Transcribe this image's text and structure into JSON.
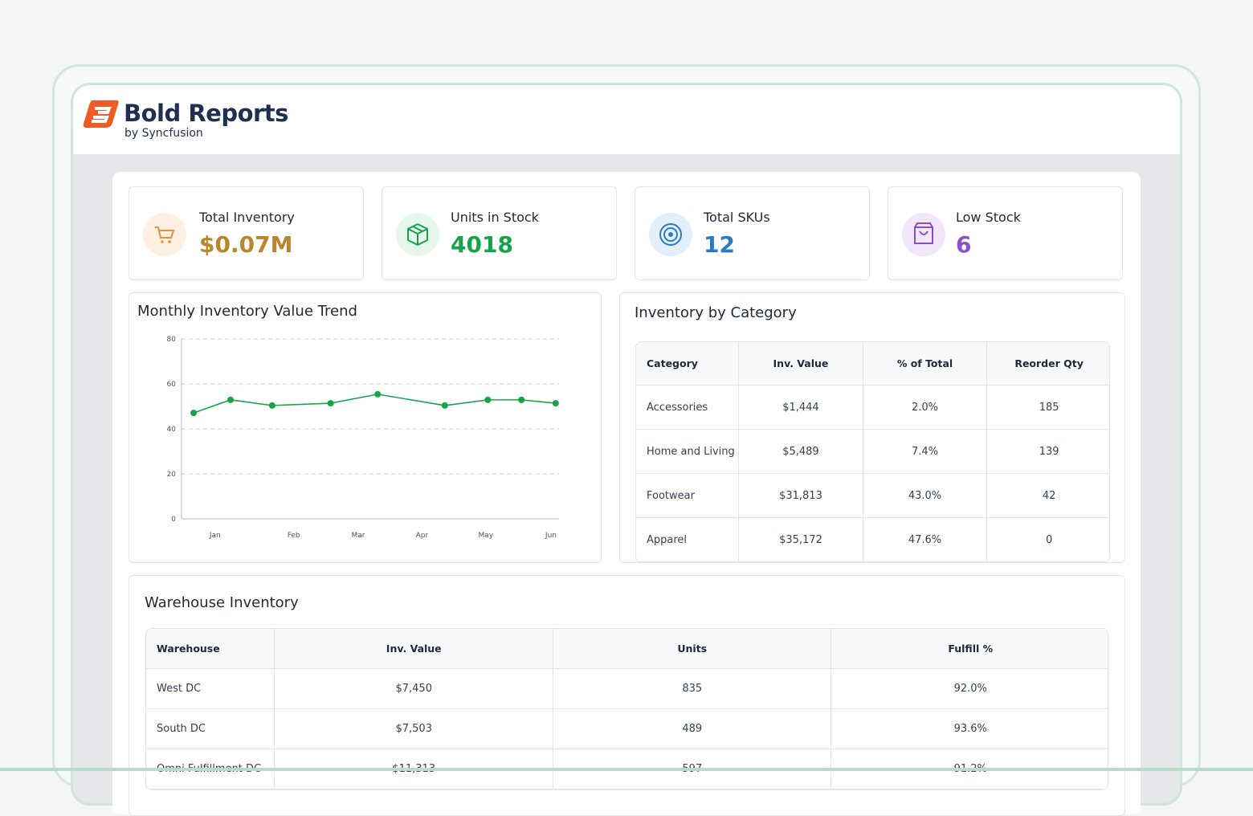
{
  "header": {
    "logo_title": "Bold Reports",
    "logo_subtitle": "by Syncfusion"
  },
  "kpis": [
    {
      "label": "Total Inventory",
      "value": "$0.07M"
    },
    {
      "label": "Units in Stock",
      "value": "4018"
    },
    {
      "label": "Total SKUs",
      "value": "12"
    },
    {
      "label": "Low Stock",
      "value": "6"
    }
  ],
  "chart_data": {
    "type": "line",
    "title": "Monthly Inventory Value Trend",
    "x": [
      0.68,
      1.23,
      1.85,
      2.72,
      3.42,
      4.42,
      5.06,
      5.56,
      6.07
    ],
    "values": [
      47.1,
      52.9,
      50.4,
      51.4,
      55.4,
      50.4,
      52.9,
      52.9,
      51.4
    ],
    "color": "#16a34a",
    "xlim": [
      0.5,
      6.12
    ],
    "xticks": [
      {
        "value": 1,
        "label": "Jan"
      },
      {
        "value": 2.17,
        "label": "Feb"
      },
      {
        "value": 3.13,
        "label": "Mar"
      },
      {
        "value": 4.08,
        "label": "Apr"
      },
      {
        "value": 5.03,
        "label": "May"
      },
      {
        "value": 6.0,
        "label": "Jun"
      }
    ],
    "ylim": [
      0,
      80
    ],
    "yticks": [
      0,
      20,
      40,
      60,
      80
    ],
    "grid": true
  },
  "category_table": {
    "title": "Inventory by Category",
    "columns": [
      "Category",
      "Inv. Value",
      "% of Total",
      "Reorder Qty"
    ],
    "rows": [
      [
        "Accessories",
        "$1,444",
        "2.0%",
        "185"
      ],
      [
        "Home and Living",
        "$5,489",
        "7.4%",
        "139"
      ],
      [
        "Footwear",
        "$31,813",
        "43.0%",
        "42"
      ],
      [
        "Apparel",
        "$35,172",
        "47.6%",
        "0"
      ]
    ]
  },
  "warehouse_table": {
    "title": "Warehouse Inventory",
    "columns": [
      "Warehouse",
      "Inv. Value",
      "Units",
      "Fulfill %"
    ],
    "rows": [
      [
        "West DC",
        "$7,450",
        "835",
        "92.0%"
      ],
      [
        "South DC",
        "$7,503",
        "489",
        "93.6%"
      ],
      [
        "Omni Fulfillment DC",
        "$11,313",
        "597",
        "91.2%"
      ]
    ]
  }
}
